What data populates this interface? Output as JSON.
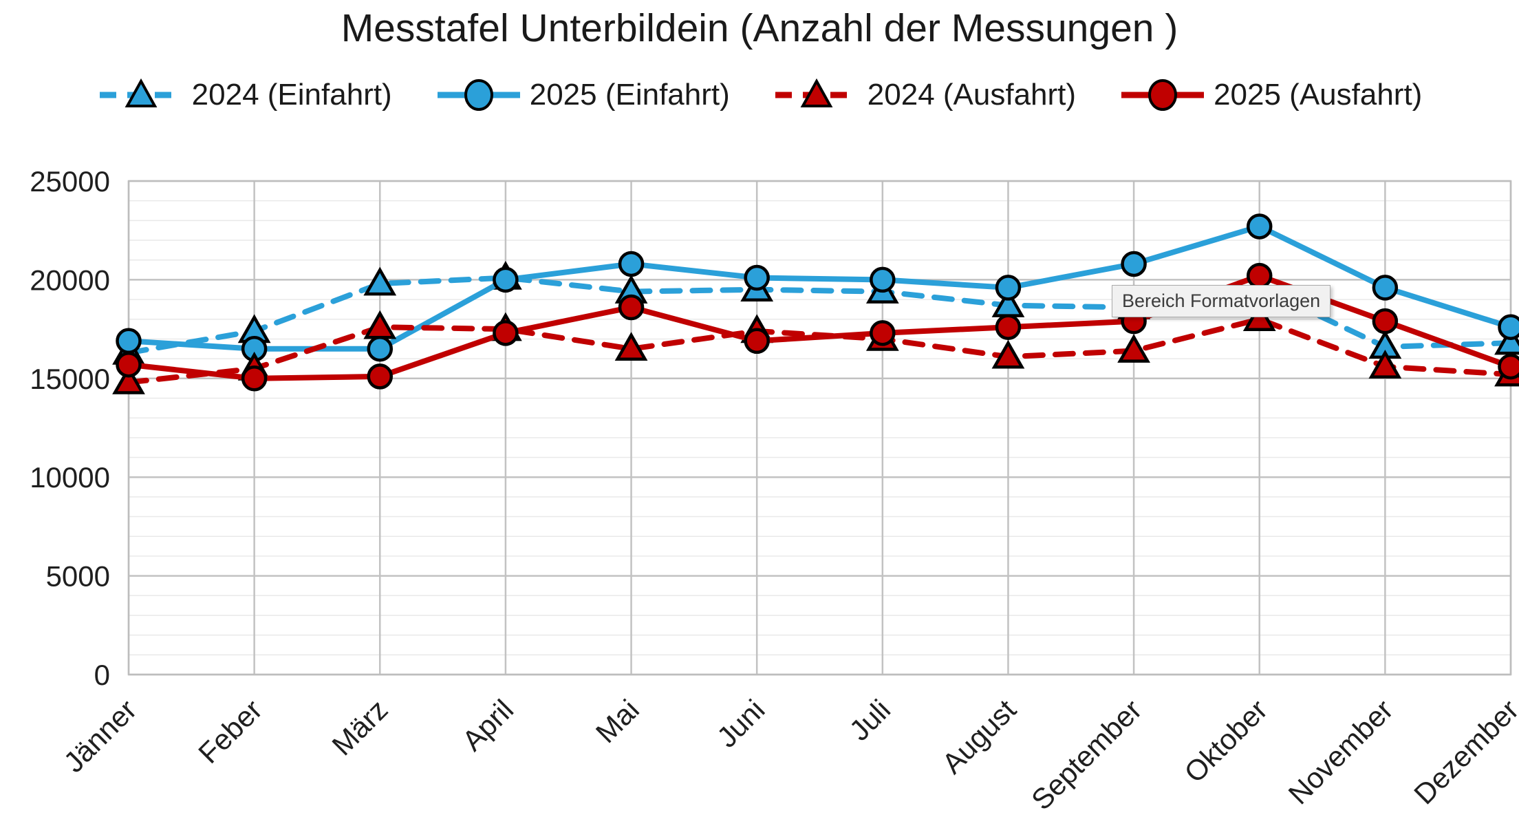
{
  "title": "Messtafel Unterbildein (Anzahl der Messungen )",
  "tooltip_text": "Bereich Formatvorlagen",
  "colors": {
    "einfahrt_blue": "#2BA0D9",
    "ausfahrt_red": "#C00000",
    "grid_major": "#c2c2c2",
    "grid_minor": "#e9e9e9",
    "plot_border": "#bdbdbd",
    "axis_text": "#1f1f1f"
  },
  "chart_data": {
    "type": "line",
    "title": "Messtafel Unterbildein (Anzahl der Messungen )",
    "categories": [
      "Jänner",
      "Feber",
      "März",
      "April",
      "Mai",
      "Juni",
      "Juli",
      "August",
      "September",
      "Oktober",
      "November",
      "Dezember"
    ],
    "series": [
      {
        "name": "2024 (Einfahrt)",
        "color": "#2BA0D9",
        "line_style": "dashed",
        "marker": "triangle",
        "values": [
          16300,
          17400,
          19800,
          20100,
          19400,
          19500,
          19400,
          18700,
          18600,
          19600,
          16600,
          16800
        ]
      },
      {
        "name": "2025 (Einfahrt)",
        "color": "#2BA0D9",
        "line_style": "solid",
        "marker": "circle",
        "values": [
          16900,
          16500,
          16500,
          20000,
          20800,
          20100,
          20000,
          19600,
          20800,
          22700,
          19600,
          17600
        ]
      },
      {
        "name": "2024 (Ausfahrt)",
        "color": "#C00000",
        "line_style": "dashed",
        "marker": "triangle",
        "values": [
          14800,
          15500,
          17600,
          17500,
          16500,
          17400,
          17000,
          16100,
          16400,
          18000,
          15600,
          15200
        ]
      },
      {
        "name": "2025 (Ausfahrt)",
        "color": "#C00000",
        "line_style": "solid",
        "marker": "circle",
        "values": [
          15700,
          15000,
          15100,
          17300,
          18600,
          16900,
          17300,
          17600,
          17900,
          20200,
          17900,
          15600
        ]
      }
    ],
    "ylim": [
      0,
      25000
    ],
    "y_major_step": 5000,
    "y_minor_step": 1000,
    "y_tick_labels": [
      "0",
      "5000",
      "10000",
      "15000",
      "20000",
      "25000"
    ],
    "legend_position": "top",
    "grid": "major-and-minor"
  }
}
